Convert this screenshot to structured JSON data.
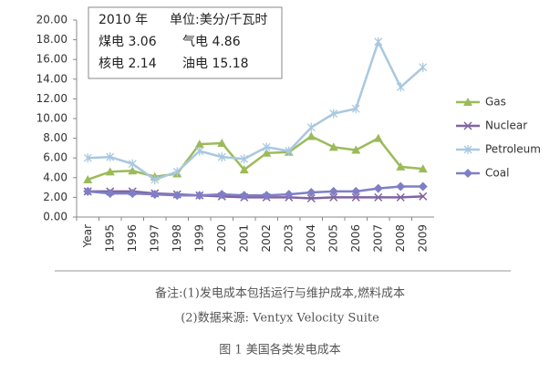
{
  "chart_data": {
    "type": "line",
    "categories": [
      "Year",
      "1995",
      "1996",
      "1997",
      "1998",
      "1999",
      "2000",
      "2001",
      "2002",
      "2003",
      "2004",
      "2005",
      "2006",
      "2007",
      "2008",
      "2009"
    ],
    "series": [
      {
        "name": "Gas",
        "color": "#9bbb59",
        "marker": "triangle",
        "values": [
          3.8,
          4.6,
          4.7,
          4.1,
          4.4,
          7.4,
          7.5,
          4.8,
          6.5,
          6.6,
          8.2,
          7.1,
          6.8,
          8.0,
          5.1,
          4.9
        ]
      },
      {
        "name": "Nuclear",
        "color": "#8064a2",
        "marker": "x",
        "values": [
          2.6,
          2.6,
          2.6,
          2.4,
          2.3,
          2.2,
          2.1,
          2.0,
          2.0,
          2.0,
          1.9,
          2.0,
          2.0,
          2.0,
          2.0,
          2.1
        ]
      },
      {
        "name": "Petroleum",
        "color": "#a9c8df",
        "marker": "star",
        "values": [
          6.0,
          6.1,
          5.4,
          3.8,
          4.6,
          6.7,
          6.1,
          5.9,
          7.1,
          6.7,
          9.1,
          10.5,
          11.0,
          17.8,
          13.2,
          15.2
        ]
      },
      {
        "name": "Coal",
        "color": "#7f7fc7",
        "marker": "diamond",
        "values": [
          2.6,
          2.4,
          2.4,
          2.3,
          2.2,
          2.2,
          2.3,
          2.2,
          2.2,
          2.3,
          2.5,
          2.6,
          2.6,
          2.9,
          3.1,
          3.1
        ]
      }
    ],
    "ylim": [
      0,
      20
    ],
    "yticks": [
      {
        "value": 0,
        "label": "0.00"
      },
      {
        "value": 2,
        "label": "2.00"
      },
      {
        "value": 4,
        "label": "4.00"
      },
      {
        "value": 6,
        "label": "6.00"
      },
      {
        "value": 8,
        "label": "8.00"
      },
      {
        "value": 10,
        "label": "10.00"
      },
      {
        "value": 12,
        "label": "12.00"
      },
      {
        "value": 14,
        "label": "14.00"
      },
      {
        "value": 16,
        "label": "16.00"
      },
      {
        "value": 18,
        "label": "18.00"
      },
      {
        "value": 20,
        "label": "20.00"
      }
    ],
    "grid": false,
    "legend": "right",
    "annotations": [
      "2010 年",
      "单位:美分/千瓦时",
      "煤电 3.06",
      "气电 4.86",
      "核电 2.14",
      "油电 15.18"
    ],
    "notes": [
      "备注:(1)发电成本包括运行与维护成本,燃料成本",
      "(2)数据来源: Ventyx Velocity Suite"
    ],
    "caption": "图 1 美国各类发电成本"
  }
}
